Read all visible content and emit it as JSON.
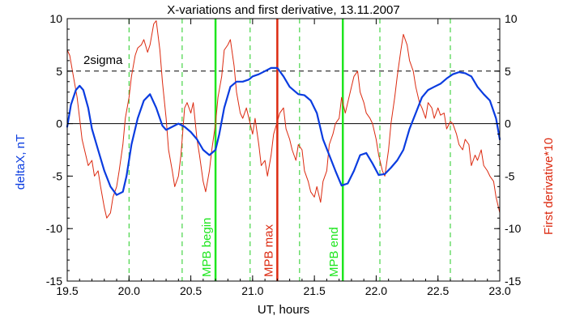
{
  "chart_data": {
    "type": "line",
    "title": "X-variations and first derivative, 13.11.2007",
    "xlabel": "UT, hours",
    "ylabel_left": "deltaX, nT",
    "ylabel_right": "First derivative*10",
    "xlim": [
      19.5,
      23.0
    ],
    "ylim": [
      -15,
      10
    ],
    "x_ticks": [
      19.5,
      20.0,
      20.5,
      21.0,
      21.5,
      22.0,
      22.5,
      23.0
    ],
    "x_tick_labels": [
      "19.5",
      "20.0",
      "20.5",
      "21.0",
      "21.5",
      "22.0",
      "22.5",
      "23.0"
    ],
    "y_ticks": [
      -15,
      -10,
      -5,
      0,
      5,
      10
    ],
    "y_tick_labels": [
      "-15",
      "-10",
      "-5",
      "0",
      "5",
      "10"
    ],
    "sigma_level": 5,
    "sigma_label": "2sigma",
    "colors": {
      "deltaX": "#0a3ce0",
      "derivative": "#dc2a10",
      "mpb_bounds": "#1ee61e",
      "mpb_max": "#dc2a10",
      "minor_marks": "#22cc22",
      "axes": "#000000"
    },
    "series": [
      {
        "name": "deltaX, nT",
        "axis": "left",
        "x": [
          19.5,
          19.53,
          19.57,
          19.6,
          19.63,
          19.67,
          19.7,
          19.75,
          19.8,
          19.85,
          19.9,
          19.95,
          19.98,
          20.02,
          20.07,
          20.12,
          20.17,
          20.22,
          20.27,
          20.3,
          20.35,
          20.4,
          20.45,
          20.5,
          20.55,
          20.6,
          20.65,
          20.7,
          20.73,
          20.77,
          20.82,
          20.87,
          20.92,
          20.97,
          21.0,
          21.05,
          21.1,
          21.15,
          21.2,
          21.25,
          21.3,
          21.37,
          21.42,
          21.47,
          21.52,
          21.57,
          21.62,
          21.67,
          21.72,
          21.77,
          21.82,
          21.87,
          21.92,
          21.97,
          22.02,
          22.07,
          22.12,
          22.17,
          22.22,
          22.27,
          22.32,
          22.37,
          22.42,
          22.47,
          22.52,
          22.57,
          22.62,
          22.67,
          22.72,
          22.77,
          22.82,
          22.87,
          22.92,
          22.97,
          23.0
        ],
        "y": [
          -0.3,
          1.8,
          3.2,
          3.6,
          3.2,
          1.5,
          -0.5,
          -2.5,
          -4.5,
          -6.0,
          -6.8,
          -6.5,
          -5.0,
          -2.0,
          0.5,
          2.2,
          2.8,
          1.5,
          -0.2,
          -0.6,
          -0.3,
          0.0,
          -0.3,
          -0.8,
          -1.5,
          -2.5,
          -3.0,
          -2.5,
          -1.0,
          1.5,
          3.5,
          4.0,
          4.0,
          4.2,
          4.5,
          4.7,
          5.0,
          5.3,
          5.3,
          4.5,
          3.5,
          2.8,
          2.7,
          2.2,
          1.0,
          -1.5,
          -3.0,
          -4.5,
          -5.9,
          -5.7,
          -4.5,
          -3.0,
          -2.8,
          -3.8,
          -4.9,
          -4.8,
          -4.2,
          -3.5,
          -2.5,
          -0.5,
          1.0,
          2.5,
          3.2,
          3.5,
          3.8,
          4.3,
          4.7,
          4.9,
          4.8,
          4.5,
          3.5,
          2.8,
          2.2,
          0.5,
          -1.5
        ]
      },
      {
        "name": "First derivative*10",
        "axis": "right",
        "x": [
          19.5,
          19.52,
          19.55,
          19.58,
          19.6,
          19.62,
          19.65,
          19.67,
          19.7,
          19.72,
          19.75,
          19.77,
          19.8,
          19.82,
          19.85,
          19.87,
          19.9,
          19.92,
          19.95,
          19.97,
          20.0,
          20.02,
          20.05,
          20.07,
          20.1,
          20.12,
          20.15,
          20.17,
          20.2,
          20.22,
          20.25,
          20.27,
          20.3,
          20.32,
          20.35,
          20.37,
          20.4,
          20.42,
          20.45,
          20.47,
          20.5,
          20.52,
          20.55,
          20.57,
          20.6,
          20.62,
          20.65,
          20.67,
          20.7,
          20.72,
          20.75,
          20.77,
          20.8,
          20.82,
          20.85,
          20.87,
          20.9,
          20.92,
          20.95,
          20.97,
          21.0,
          21.02,
          21.05,
          21.07,
          21.1,
          21.12,
          21.15,
          21.17,
          21.2,
          21.22,
          21.25,
          21.27,
          21.3,
          21.32,
          21.35,
          21.37,
          21.4,
          21.42,
          21.45,
          21.47,
          21.5,
          21.52,
          21.55,
          21.57,
          21.6,
          21.62,
          21.65,
          21.67,
          21.7,
          21.72,
          21.75,
          21.77,
          21.8,
          21.82,
          21.85,
          21.87,
          21.9,
          21.92,
          21.95,
          21.97,
          22.0,
          22.02,
          22.05,
          22.07,
          22.1,
          22.12,
          22.15,
          22.17,
          22.2,
          22.22,
          22.25,
          22.27,
          22.3,
          22.32,
          22.35,
          22.37,
          22.4,
          22.42,
          22.45,
          22.47,
          22.5,
          22.52,
          22.55,
          22.57,
          22.6,
          22.62,
          22.65,
          22.67,
          22.7,
          22.72,
          22.75,
          22.77,
          22.8,
          22.82,
          22.85,
          22.87,
          22.9,
          22.92,
          22.95,
          22.97,
          23.0
        ],
        "y": [
          7.0,
          6.5,
          4.5,
          2.5,
          0.5,
          -1.5,
          -3.0,
          -4.0,
          -3.5,
          -5.0,
          -4.5,
          -6.0,
          -8.0,
          -9.0,
          -8.5,
          -7.0,
          -6.0,
          -4.5,
          -2.0,
          0.5,
          2.5,
          4.5,
          6.5,
          7.2,
          7.5,
          8.0,
          6.8,
          7.5,
          9.5,
          9.8,
          7.0,
          4.0,
          0.5,
          -2.5,
          -4.5,
          -6.0,
          -5.0,
          -3.0,
          1.5,
          2.0,
          1.0,
          2.0,
          -1.5,
          -3.0,
          -5.5,
          -6.5,
          -4.5,
          -2.5,
          0.0,
          2.5,
          4.5,
          7.0,
          7.5,
          8.0,
          5.5,
          3.0,
          1.0,
          0.5,
          1.5,
          0.5,
          -1.0,
          0.5,
          -2.0,
          -4.0,
          -3.5,
          -5.0,
          -3.0,
          -1.0,
          0.2,
          1.0,
          1.5,
          -0.5,
          -1.5,
          -2.5,
          -3.5,
          -2.0,
          -2.5,
          -4.5,
          -5.5,
          -6.5,
          -7.0,
          -6.0,
          -7.5,
          -5.5,
          -4.5,
          -2.0,
          -1.0,
          0.0,
          0.5,
          2.5,
          1.0,
          2.0,
          3.5,
          4.5,
          5.0,
          3.0,
          2.0,
          1.0,
          0.5,
          0.0,
          -1.5,
          -3.0,
          -4.5,
          -5.0,
          -2.5,
          0.0,
          2.5,
          4.5,
          7.0,
          8.5,
          7.5,
          6.0,
          5.0,
          3.5,
          2.0,
          1.5,
          0.5,
          2.0,
          1.5,
          0.5,
          1.5,
          0.8,
          1.0,
          -0.5,
          0.2,
          0.0,
          -1.0,
          -2.0,
          -2.5,
          -1.5,
          -2.0,
          -4.0,
          -3.0,
          -3.5,
          -2.5,
          -4.0,
          -4.5,
          -5.0,
          -5.5,
          -7.0,
          -8.5
        ]
      }
    ],
    "vertical_markers": [
      {
        "x": 20.7,
        "kind": "mpb_bounds",
        "label": "MPB begin",
        "label_color": "mpb_bounds"
      },
      {
        "x": 21.2,
        "kind": "mpb_max",
        "label": "MPB max",
        "label_color": "mpb_max"
      },
      {
        "x": 21.73,
        "kind": "mpb_bounds",
        "label": "MPB end",
        "label_color": "mpb_bounds"
      }
    ],
    "dashed_markers": [
      20.0,
      20.43,
      20.98,
      21.38,
      22.03,
      22.6
    ]
  }
}
